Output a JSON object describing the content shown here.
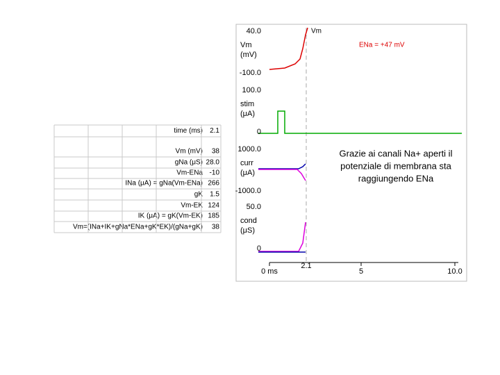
{
  "table": {
    "rows": [
      [
        "time (ms)",
        "2.1"
      ],
      [
        "Vm (mV)",
        "38"
      ],
      [
        "gNa (μS)",
        "28.0"
      ],
      [
        "Vm-ENa",
        "-10"
      ],
      [
        "INa (μA) = gNa(Vm-ENa)",
        "266"
      ],
      [
        "gK",
        "1.5"
      ],
      [
        "Vm-EK",
        "124"
      ],
      [
        "IK (μA) = gK(Vm-EK)",
        "185"
      ],
      [
        "Vm=(INa+IK+gNa*ENa+gK*EK)/(gNa+gK)",
        "38"
      ]
    ]
  },
  "plot": {
    "panels": [
      {
        "label": [
          "Vm",
          "(mV)"
        ],
        "top": "40.0",
        "bottom": "-100.0"
      },
      {
        "label": [
          "stim",
          "(μA)"
        ],
        "top": "100.0",
        "bottom": "0"
      },
      {
        "label": [
          "curr",
          "(μA)"
        ],
        "top": "1000.0",
        "bottom": "-1000.0"
      },
      {
        "label": [
          "cond",
          "(μS)"
        ],
        "top": "50.0",
        "bottom": "0"
      }
    ],
    "x_ticks": [
      "0 ms",
      "5",
      "10.0"
    ],
    "marker_label": "2.1",
    "vm_label": "Vm",
    "ena_label": "ENa = +47 mV"
  },
  "annotation": [
    "Grazie ai canali Na+ aperti il",
    "potenziale di membrana sta",
    "raggiungendo ENa"
  ]
}
